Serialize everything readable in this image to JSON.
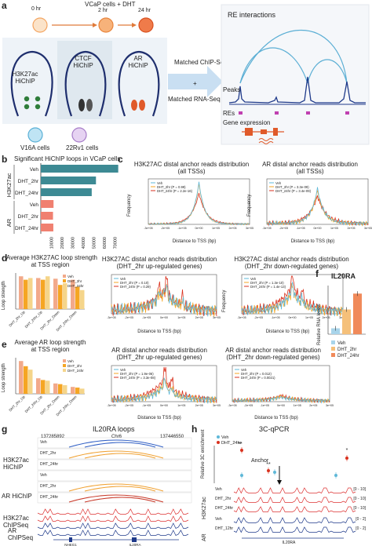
{
  "panel_labels": {
    "a": "a",
    "b": "b",
    "c": "c",
    "d": "d",
    "e": "e",
    "f": "f",
    "g": "g",
    "h": "h"
  },
  "panel_a": {
    "time_0": "0 hr",
    "treatment": "VCaP cells + DHT",
    "time_2": "2 hr",
    "time_24": "24 hr",
    "hichip1_line1": "H3K27ac",
    "hichip1_line2": "HiChIP",
    "hichip2_line1": "CTCF",
    "hichip2_line2": "HiChIP",
    "hichip3_line1": "AR",
    "hichip3_line2": "HiChIP",
    "cell1": "V16A cells",
    "cell2": "22Rv1 cells",
    "arrow1": "Matched ChIP-Seq",
    "plus": "+",
    "arrow2": "Matched RNA-Seq",
    "re_interactions": "RE interactions",
    "peaks": "Peaks",
    "res": "REs",
    "gene_expression": "Gene expression"
  },
  "panel_b": {
    "title": "Significant HiChIP loops in VCaP cells",
    "group1": "H3K27ac",
    "group2": "AR",
    "categories": [
      "Veh",
      "DHT_2hr",
      "DHT_24hr",
      "Veh",
      "DHT_2hr",
      "DHT_24hr"
    ],
    "ticks": [
      "10000",
      "20000",
      "30000",
      "40000",
      "50000",
      "60000",
      "70000"
    ]
  },
  "panel_c": {
    "left_title1": "H3K27AC distal anchor reads distribution",
    "left_title2": "(all TSSs)",
    "right_title1": "AR distal anchor reads distribution",
    "right_title2": "(all TSSs)",
    "ylabel": "Frequency",
    "xlabel": "Distance to TSS (bp)",
    "left_legend": [
      "Veh",
      "DHT_2hr (P = 0.99)",
      "DHT_24hr (P = 2.2e-16)"
    ],
    "right_legend": [
      "Veh",
      "DHT_2hr (P = 3.3e-09)",
      "DHT_24hr (P = 3.4e-09)"
    ],
    "xticks": [
      "-3e+05",
      "-2e+05",
      "-1e+05",
      "0e+00",
      "1e+05",
      "2e+05",
      "3e+05"
    ]
  },
  "panel_d": {
    "title1": "Average H3K27AC loop strength",
    "title2": "at TSS region",
    "ylabel": "Loop strength",
    "legend": [
      "Veh",
      "DHT_2hr",
      "DHT_24hr"
    ],
    "cats": [
      "DHT_2hr_Up",
      "DHT_24hr_Up",
      "DHT_2hr_Down",
      "DHT_24hr_Down"
    ],
    "mid_title1": "H3K27AC distal anchor reads distribution",
    "mid_title2": "(DHT_2hr up-regulated genes)",
    "mid_legend": [
      "Veh",
      "DHT_2hr (P = 0.10)",
      "DHT_24hr (P = 0.29)"
    ],
    "right_title1": "H3K27AC distal anchor reads distribution",
    "right_title2": "(DHT_2hr down-regulated genes)",
    "right_legend": [
      "Veh",
      "DHT_2hr (P = 1.3e-10)",
      "DHT_24hr (P = 1.4e-13)"
    ]
  },
  "panel_e": {
    "title1": "Average AR loop strength",
    "title2": "at TSS region",
    "ylabel": "Loop strength",
    "legend": [
      "Veh",
      "DHT_2hr",
      "DHT_24hr"
    ],
    "mid_title1": "AR distal anchor reads distribution",
    "mid_title2": "(DHT_2hr up-regulated genes)",
    "mid_legend": [
      "Veh",
      "DHT_2hr (P = 1.9e-06)",
      "DHT_24hr (P = 3.3e-08)"
    ],
    "right_title1": "AR distal anchor reads distribution",
    "right_title2": "(DHT_2hr down-regulated genes)",
    "right_legend": [
      "Veh",
      "DHT_2hr (P = 0.012)",
      "DHT_24hr (P = 0.0021)"
    ]
  },
  "panel_f": {
    "title": "IL20RA",
    "ylabel": "Relative RNA levels",
    "legend": [
      "Veh",
      "DHT_2hr",
      "DHT_24hr"
    ]
  },
  "panel_g": {
    "title": "IL20RA loops",
    "coord_left": "137285892",
    "chrom": "Chr6",
    "coord_right": "137446550",
    "group1_line1": "H3K27ac",
    "group1_line2": "HiChIP",
    "group2": "AR HiChIP",
    "group3_line1": "H3K27ac",
    "group3_line2": "ChIPSeq",
    "group4_line1": "AR",
    "group4_line2": "ChIPSeq",
    "tracks": [
      "Veh",
      "DHT_2hr",
      "DHT_24hr",
      "Veh",
      "DHT_2hr",
      "DHT_24hr"
    ],
    "genes": [
      "NHEG1",
      "IL20RA"
    ]
  },
  "panel_h": {
    "title": "3C-qPCR",
    "legend": [
      "Veh",
      "DHT_24hr"
    ],
    "ylabel": "Relative 3C enrichment",
    "anchor": "Anchor",
    "stars1": "**",
    "stars2": "**",
    "star3": "*",
    "group1": "H3K27ac",
    "group2": "AR",
    "tracks": [
      "Veh",
      "DHT_2hr",
      "DHT_24hr",
      "Veh",
      "DHT_12hr"
    ],
    "ranges": [
      "[0 - 10]",
      "[0 - 10]",
      "[0 - 10]",
      "[0 - 2]",
      "[0 - 2]"
    ],
    "gene": "IL20RA"
  },
  "colors": {
    "veh": "#5fb8d8",
    "dht2": "#f5a623",
    "dht24": "#d9321f",
    "teal": "#3d8a94",
    "salmon": "#f08070",
    "navy": "#1f3a8a",
    "blue_arc": "#2f5ec4",
    "orange_arc": "#f0a030",
    "red_arc": "#c83a2a"
  }
}
